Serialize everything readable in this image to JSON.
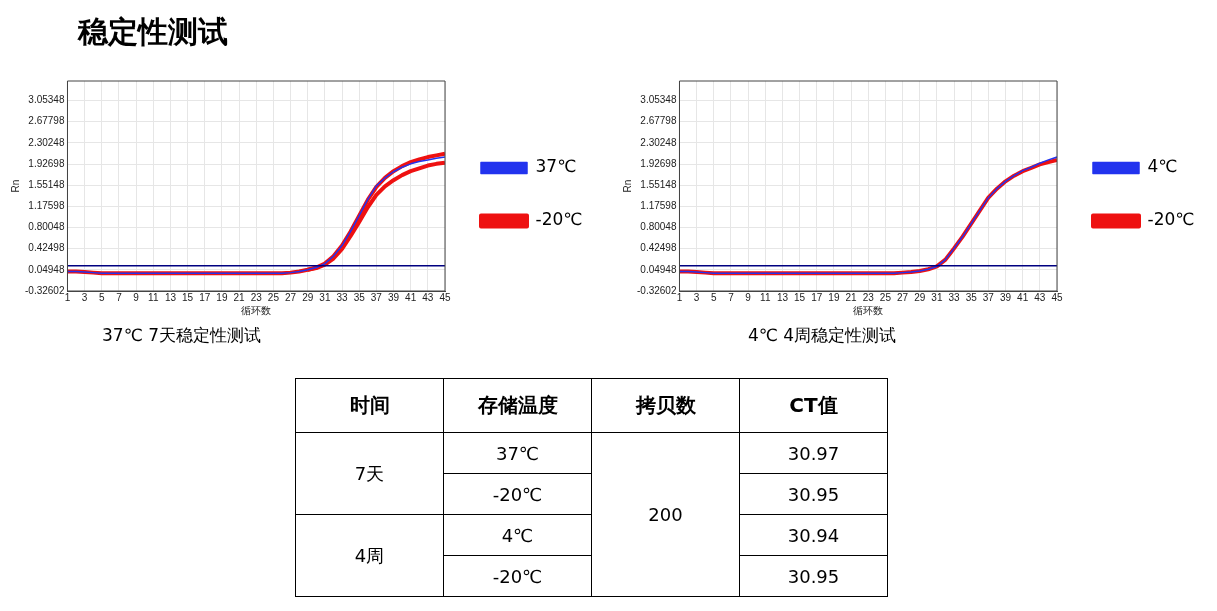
{
  "chart_data": [
    {
      "type": "line",
      "title": "稳定性测试",
      "xlabel": "循环数",
      "ylabel": "Rn",
      "annotations": [
        "37℃ 7天稳定性测试"
      ],
      "x": [
        1,
        2,
        3,
        4,
        5,
        6,
        7,
        8,
        9,
        10,
        11,
        12,
        13,
        14,
        15,
        16,
        17,
        18,
        19,
        20,
        21,
        22,
        23,
        24,
        25,
        26,
        27,
        28,
        29,
        30,
        31,
        32,
        33,
        34,
        35,
        36,
        37,
        38,
        39,
        40,
        41,
        42,
        43,
        44,
        45
      ],
      "series": [
        {
          "name": "37℃",
          "color": "#2233ee",
          "values": [
            0.02,
            0.02,
            0.01,
            0.0,
            -0.01,
            -0.01,
            -0.01,
            -0.01,
            -0.01,
            -0.01,
            -0.01,
            -0.01,
            -0.01,
            -0.01,
            -0.01,
            -0.01,
            -0.01,
            -0.01,
            -0.01,
            -0.01,
            -0.01,
            -0.01,
            -0.01,
            -0.01,
            -0.01,
            -0.01,
            0.0,
            0.02,
            0.05,
            0.09,
            0.16,
            0.29,
            0.48,
            0.73,
            1.01,
            1.3,
            1.54,
            1.68,
            1.79,
            1.87,
            1.93,
            1.97,
            2.0,
            2.03,
            2.05
          ]
        },
        {
          "name": "-20℃",
          "color": "#ee1111",
          "values": [
            0.02,
            0.02,
            0.01,
            0.0,
            -0.01,
            -0.01,
            -0.01,
            -0.01,
            -0.01,
            -0.01,
            -0.01,
            -0.01,
            -0.01,
            -0.01,
            -0.01,
            -0.01,
            -0.01,
            -0.01,
            -0.01,
            -0.01,
            -0.01,
            -0.01,
            -0.01,
            -0.01,
            -0.01,
            -0.01,
            0.0,
            0.02,
            0.05,
            0.09,
            0.16,
            0.29,
            0.48,
            0.73,
            1.01,
            1.29,
            1.52,
            1.68,
            1.8,
            1.89,
            1.96,
            2.01,
            2.05,
            2.08,
            2.11
          ]
        },
        {
          "color": "#ee1111",
          "values": [
            null,
            null,
            null,
            null,
            null,
            null,
            null,
            null,
            null,
            null,
            null,
            null,
            null,
            null,
            null,
            null,
            null,
            null,
            null,
            null,
            null,
            null,
            null,
            null,
            null,
            null,
            null,
            null,
            0.05,
            0.08,
            0.14,
            0.25,
            0.42,
            0.65,
            0.9,
            1.16,
            1.38,
            1.53,
            1.64,
            1.73,
            1.8,
            1.85,
            1.9,
            1.93,
            1.95
          ]
        }
      ],
      "xlim": [
        1,
        45
      ],
      "xticks": [
        1,
        3,
        5,
        7,
        9,
        11,
        13,
        15,
        17,
        19,
        21,
        23,
        25,
        27,
        29,
        31,
        33,
        35,
        37,
        39,
        41,
        43,
        45
      ],
      "ylim": [
        -0.32602,
        3.4
      ],
      "yticks": [
        -0.32602,
        0.04948,
        0.42498,
        0.80048,
        1.17598,
        1.55148,
        1.92698,
        2.30248,
        2.67798,
        3.05348
      ],
      "ref_lines": [
        {
          "axis": "y",
          "value": 0.12,
          "color": "#000080"
        }
      ],
      "grid": true,
      "legend": "right",
      "marker": "none",
      "line_style": "solid"
    },
    {
      "type": "line",
      "xlabel": "循环数",
      "ylabel": "Rn",
      "annotations": [
        "4℃ 4周稳定性测试"
      ],
      "x": [
        1,
        2,
        3,
        4,
        5,
        6,
        7,
        8,
        9,
        10,
        11,
        12,
        13,
        14,
        15,
        16,
        17,
        18,
        19,
        20,
        21,
        22,
        23,
        24,
        25,
        26,
        27,
        28,
        29,
        30,
        31,
        32,
        33,
        34,
        35,
        36,
        37,
        38,
        39,
        40,
        41,
        42,
        43,
        44,
        45
      ],
      "series": [
        {
          "name": "4℃",
          "color": "#2233ee",
          "values": [
            0.02,
            0.02,
            0.01,
            0.0,
            -0.01,
            -0.01,
            -0.01,
            -0.01,
            -0.01,
            -0.01,
            -0.01,
            -0.01,
            -0.01,
            -0.01,
            -0.01,
            -0.01,
            -0.01,
            -0.01,
            -0.01,
            -0.01,
            -0.01,
            -0.01,
            -0.01,
            -0.01,
            -0.01,
            -0.01,
            0.0,
            0.01,
            0.03,
            0.06,
            0.11,
            0.23,
            0.43,
            0.64,
            0.87,
            1.1,
            1.33,
            1.49,
            1.62,
            1.72,
            1.81,
            1.87,
            1.94,
            2.0,
            2.05
          ]
        },
        {
          "name": "-20℃",
          "color": "#ee1111",
          "values": [
            0.02,
            0.02,
            0.01,
            0.0,
            -0.01,
            -0.01,
            -0.01,
            -0.01,
            -0.01,
            -0.01,
            -0.01,
            -0.01,
            -0.01,
            -0.01,
            -0.01,
            -0.01,
            -0.01,
            -0.01,
            -0.01,
            -0.01,
            -0.01,
            -0.01,
            -0.01,
            -0.01,
            -0.01,
            -0.01,
            0.0,
            0.01,
            0.03,
            0.06,
            0.11,
            0.23,
            0.43,
            0.64,
            0.87,
            1.1,
            1.33,
            1.49,
            1.62,
            1.72,
            1.8,
            1.86,
            1.92,
            1.96,
            2.0
          ]
        }
      ],
      "xlim": [
        1,
        45
      ],
      "xticks": [
        1,
        3,
        5,
        7,
        9,
        11,
        13,
        15,
        17,
        19,
        21,
        23,
        25,
        27,
        29,
        31,
        33,
        35,
        37,
        39,
        41,
        43,
        45
      ],
      "ylim": [
        -0.32602,
        3.4
      ],
      "yticks": [
        -0.32602,
        0.04948,
        0.42498,
        0.80048,
        1.17598,
        1.55148,
        1.92698,
        2.30248,
        2.67798,
        3.05348
      ],
      "ref_lines": [
        {
          "axis": "y",
          "value": 0.12,
          "color": "#000080"
        }
      ],
      "grid": true,
      "legend": "right",
      "marker": "none",
      "line_style": "solid"
    },
    {
      "type": "other",
      "annotations": [
        "时间",
        "存储温度",
        "拷贝数",
        "CT值",
        "7天",
        "37℃",
        "200",
        "30.97",
        "-20℃",
        "30.95",
        "4周",
        "4℃",
        "30.94",
        "-20℃",
        "30.95"
      ]
    }
  ]
}
